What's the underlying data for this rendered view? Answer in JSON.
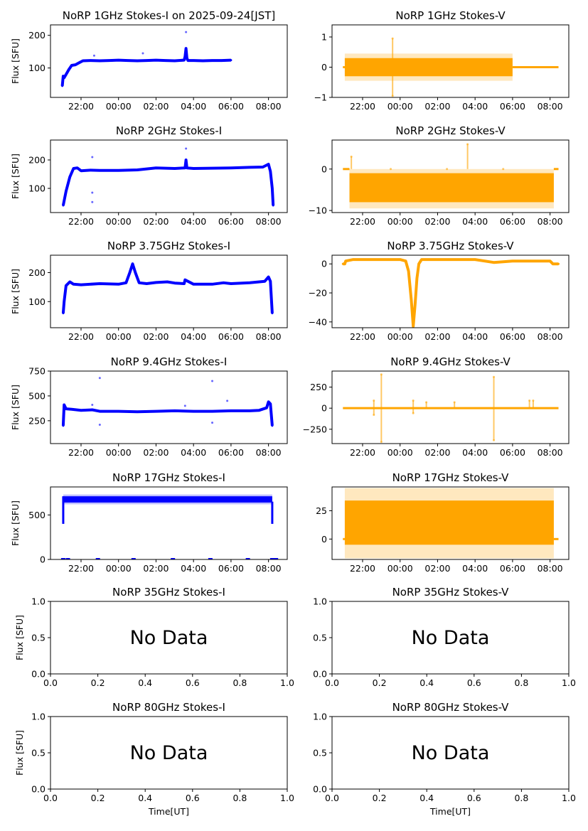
{
  "figure": {
    "colors": {
      "stokes_i": "#0000ff",
      "stokes_v": "#ffa500",
      "axis": "#000000"
    }
  },
  "chart_data": [
    {
      "type": "scatter",
      "title": "NoRP 1GHz Stokes-I on 2025-09-24[JST]",
      "ylabel": "Flux [SFU]",
      "xlabel": "",
      "stokes": "I",
      "xlim": [
        20.37,
        33.0
      ],
      "ylim": [
        10,
        232
      ],
      "yticks": [
        100,
        200
      ],
      "xticks": [
        "22:00",
        "00:00",
        "02:00",
        "04:00",
        "06:00",
        "08:00"
      ],
      "data_range": [
        21.0,
        30.0
      ],
      "series": [
        {
          "name": "Stokes-I",
          "x": [
            21.0,
            21.05,
            21.1,
            21.2,
            21.35,
            21.5,
            21.7,
            21.9,
            22.1,
            22.5,
            23.0,
            23.5,
            24.0,
            24.5,
            25.0,
            25.5,
            26.0,
            26.5,
            27.0,
            27.5,
            27.55,
            27.6,
            27.65,
            27.7,
            28.0,
            28.5,
            29.0,
            29.5,
            30.0
          ],
          "y": [
            45,
            75,
            70,
            80,
            95,
            108,
            110,
            116,
            122,
            123,
            122,
            123,
            124,
            123,
            122,
            123,
            124,
            123,
            122,
            124,
            135,
            160,
            130,
            123,
            123,
            122,
            123,
            123,
            124
          ]
        }
      ],
      "spikes": [
        {
          "x": 22.7,
          "y": 138
        },
        {
          "x": 27.6,
          "y": 210
        },
        {
          "x": 25.3,
          "y": 145
        }
      ]
    },
    {
      "type": "scatter",
      "title": "NoRP 1GHz Stokes-V",
      "ylabel": "",
      "xlabel": "",
      "stokes": "V",
      "xlim": [
        20.37,
        33.0
      ],
      "ylim": [
        -1,
        1.4
      ],
      "yticks": [
        -1,
        0,
        1
      ],
      "xticks": [
        "22:00",
        "00:00",
        "02:00",
        "04:00",
        "06:00",
        "08:00"
      ],
      "band": {
        "x": [
          21.05,
          30.0
        ],
        "lo": -0.3,
        "hi": 0.3,
        "outer_lo": -0.45,
        "outer_hi": 0.45
      },
      "flat": [
        {
          "x": [
            20.95,
            21.05
          ],
          "y": 0
        },
        {
          "x": 30.0,
          "x2": 32.45,
          "y": 0
        }
      ],
      "spikes": [
        {
          "x": 23.6,
          "y": 0.95
        },
        {
          "x": 23.6,
          "y": -0.95
        }
      ]
    },
    {
      "type": "scatter",
      "title": "NoRP 2GHz Stokes-I",
      "ylabel": "Flux [SFU]",
      "xlabel": "",
      "stokes": "I",
      "xlim": [
        20.37,
        33.0
      ],
      "ylim": [
        15,
        270
      ],
      "yticks": [
        100,
        200
      ],
      "xticks": [
        "22:00",
        "00:00",
        "02:00",
        "04:00",
        "06:00",
        "08:00"
      ],
      "series": [
        {
          "name": "Stokes-I",
          "x": [
            21.05,
            21.2,
            21.4,
            21.6,
            21.8,
            22.0,
            22.5,
            23.0,
            24.0,
            25.0,
            26.0,
            27.0,
            27.55,
            27.6,
            27.65,
            28.0,
            29.0,
            30.0,
            31.0,
            31.7,
            32.0,
            32.1,
            32.2,
            32.25
          ],
          "y": [
            40,
            90,
            140,
            170,
            172,
            162,
            164,
            163,
            163,
            165,
            172,
            170,
            172,
            200,
            172,
            170,
            171,
            172,
            174,
            175,
            185,
            160,
            100,
            40
          ]
        }
      ],
      "spikes": [
        {
          "x": 22.6,
          "y": 210
        },
        {
          "x": 22.6,
          "y": 85
        },
        {
          "x": 22.6,
          "y": 52
        },
        {
          "x": 27.6,
          "y": 240
        }
      ]
    },
    {
      "type": "scatter",
      "title": "NoRP 2GHz Stokes-V",
      "ylabel": "",
      "xlabel": "",
      "stokes": "V",
      "xlim": [
        20.37,
        33.0
      ],
      "ylim": [
        -10.5,
        7
      ],
      "yticks": [
        -10,
        0
      ],
      "xticks": [
        "22:00",
        "00:00",
        "02:00",
        "04:00",
        "06:00",
        "08:00"
      ],
      "band": {
        "x": [
          21.3,
          32.2
        ],
        "lo": -8,
        "hi": -1,
        "outer_lo": -9.5,
        "outer_hi": 0
      },
      "flat": [
        {
          "x": [
            20.95,
            21.3
          ],
          "y": 0
        },
        {
          "x": 32.2,
          "x2": 32.45,
          "y": 0
        }
      ],
      "spikes": [
        {
          "x": 21.4,
          "y": 3
        },
        {
          "x": 27.6,
          "y": 6
        },
        {
          "x": 23.5,
          "y": 0
        },
        {
          "x": 26.5,
          "y": 0
        },
        {
          "x": 29.5,
          "y": 0
        }
      ]
    },
    {
      "type": "scatter",
      "title": "NoRP 3.75GHz Stokes-I",
      "ylabel": "Flux [SFU]",
      "xlabel": "",
      "stokes": "I",
      "xlim": [
        20.37,
        33.0
      ],
      "ylim": [
        10,
        260
      ],
      "yticks": [
        100,
        200
      ],
      "xticks": [
        "22:00",
        "00:00",
        "02:00",
        "04:00",
        "06:00",
        "08:00"
      ],
      "series": [
        {
          "name": "Stokes-I",
          "x": [
            21.05,
            21.1,
            21.2,
            21.4,
            21.6,
            22.0,
            23.0,
            24.0,
            24.4,
            24.6,
            24.75,
            24.9,
            25.1,
            25.5,
            26.0,
            26.6,
            27.0,
            27.5,
            27.55,
            28.0,
            29.0,
            29.6,
            30.0,
            31.0,
            31.8,
            32.0,
            32.1,
            32.2
          ],
          "y": [
            60,
            100,
            155,
            168,
            160,
            158,
            162,
            160,
            165,
            200,
            230,
            200,
            165,
            162,
            166,
            168,
            164,
            162,
            175,
            160,
            160,
            165,
            162,
            165,
            170,
            185,
            170,
            60
          ]
        }
      ]
    },
    {
      "type": "scatter",
      "title": "NoRP 3.75GHz Stokes-V",
      "ylabel": "",
      "xlabel": "",
      "stokes": "V",
      "xlim": [
        20.37,
        33.0
      ],
      "ylim": [
        -44,
        6
      ],
      "yticks": [
        -40,
        -20,
        0
      ],
      "xticks": [
        "22:00",
        "00:00",
        "02:00",
        "04:00",
        "06:00",
        "08:00"
      ],
      "series": [
        {
          "name": "Stokes-V",
          "x": [
            20.95,
            21.05,
            21.1,
            21.5,
            22.0,
            23.0,
            24.0,
            24.3,
            24.45,
            24.6,
            24.7,
            24.8,
            24.9,
            25.0,
            25.15,
            25.3,
            26.0,
            27.0,
            28.0,
            29.0,
            30.0,
            31.0,
            32.0,
            32.15,
            32.2,
            32.45
          ],
          "y": [
            0,
            0,
            2,
            3,
            3,
            3,
            3,
            2,
            -5,
            -25,
            -43,
            -28,
            -10,
            0,
            3,
            3,
            3,
            3,
            3,
            1,
            2,
            2,
            2,
            0,
            0,
            0
          ]
        }
      ]
    },
    {
      "type": "scatter",
      "title": "NoRP 9.4GHz Stokes-I",
      "ylabel": "Flux [SFU]",
      "xlabel": "",
      "stokes": "I",
      "xlim": [
        20.37,
        33.0
      ],
      "ylim": [
        20,
        750
      ],
      "yticks": [
        250,
        500,
        750
      ],
      "xticks": [
        "22:00",
        "00:00",
        "02:00",
        "04:00",
        "06:00",
        "08:00"
      ],
      "series": [
        {
          "name": "Stokes-I",
          "x": [
            21.05,
            21.1,
            21.2,
            21.5,
            22.0,
            22.6,
            23.0,
            24.0,
            25.0,
            26.0,
            27.0,
            28.0,
            29.0,
            30.0,
            31.0,
            31.5,
            31.9,
            32.0,
            32.1,
            32.2
          ],
          "y": [
            200,
            410,
            370,
            365,
            355,
            360,
            345,
            345,
            340,
            345,
            350,
            345,
            345,
            350,
            350,
            355,
            380,
            440,
            420,
            200
          ]
        }
      ],
      "spikes": [
        {
          "x": 22.6,
          "y": 410
        },
        {
          "x": 23.0,
          "y": 680
        },
        {
          "x": 23.0,
          "y": 210
        },
        {
          "x": 29.0,
          "y": 650
        },
        {
          "x": 29.0,
          "y": 230
        },
        {
          "x": 27.55,
          "y": 400
        },
        {
          "x": 29.8,
          "y": 450
        }
      ]
    },
    {
      "type": "scatter",
      "title": "NoRP 9.4GHz Stokes-V",
      "ylabel": "",
      "xlabel": "",
      "stokes": "V",
      "xlim": [
        20.37,
        33.0
      ],
      "ylim": [
        -420,
        440
      ],
      "yticks": [
        -250,
        0,
        250
      ],
      "xticks": [
        "22:00",
        "00:00",
        "02:00",
        "04:00",
        "06:00",
        "08:00"
      ],
      "flat": [
        {
          "x": 20.95,
          "x2": 32.45,
          "y": 0
        }
      ],
      "spikes": [
        {
          "x": 23.0,
          "y": 400
        },
        {
          "x": 23.0,
          "y": -400
        },
        {
          "x": 29.0,
          "y": 370
        },
        {
          "x": 29.0,
          "y": -380
        },
        {
          "x": 22.6,
          "y": 90
        },
        {
          "x": 22.6,
          "y": -80
        },
        {
          "x": 24.7,
          "y": 90
        },
        {
          "x": 24.7,
          "y": -60
        },
        {
          "x": 25.4,
          "y": 70
        },
        {
          "x": 26.9,
          "y": 70
        },
        {
          "x": 30.9,
          "y": 90
        },
        {
          "x": 31.1,
          "y": 90
        }
      ]
    },
    {
      "type": "scatter",
      "title": "NoRP 17GHz Stokes-I",
      "ylabel": "Flux [SFU]",
      "xlabel": "",
      "stokes": "I",
      "xlim": [
        20.37,
        33.0
      ],
      "ylim": [
        0,
        815
      ],
      "yticks": [
        0,
        500
      ],
      "xticks": [
        "22:00",
        "00:00",
        "02:00",
        "04:00",
        "06:00",
        "08:00"
      ],
      "band": {
        "x": [
          21.05,
          32.2
        ],
        "lo": 640,
        "hi": 710,
        "outer_lo": 620,
        "outer_hi": 730
      },
      "edges": [
        {
          "x": 21.05,
          "lo": 400,
          "hi": 710
        },
        {
          "x": 32.2,
          "lo": 400,
          "hi": 650
        }
      ],
      "zeros": [
        21.05,
        21.3,
        22.9,
        24.8,
        26.9,
        28.9,
        30.9,
        32.2,
        32.4
      ]
    },
    {
      "type": "scatter",
      "title": "NoRP 17GHz Stokes-V",
      "ylabel": "",
      "xlabel": "",
      "stokes": "V",
      "xlim": [
        20.37,
        33.0
      ],
      "ylim": [
        -18,
        46
      ],
      "yticks": [
        0,
        25
      ],
      "xticks": [
        "22:00",
        "00:00",
        "02:00",
        "04:00",
        "06:00",
        "08:00"
      ],
      "band": {
        "x": [
          21.05,
          32.2
        ],
        "lo": -5,
        "hi": 34,
        "outer_lo": -17,
        "outer_hi": 45
      },
      "flat": [
        {
          "x": [
            20.95,
            21.05
          ],
          "y": 0
        },
        {
          "x": 32.2,
          "x2": 32.45,
          "y": 0
        }
      ]
    },
    {
      "type": "scatter",
      "title": "NoRP 35GHz Stokes-I",
      "ylabel": "Flux [SFU]",
      "xlabel": "",
      "stokes": "I",
      "no_data": "No Data",
      "xlim": [
        0,
        1
      ],
      "ylim": [
        0,
        1
      ],
      "yticks": [
        "0.0",
        "0.5",
        "1.0"
      ],
      "xticks": [
        "0.0",
        "0.2",
        "0.4",
        "0.6",
        "0.8",
        "1.0"
      ]
    },
    {
      "type": "scatter",
      "title": "NoRP 35GHz Stokes-V",
      "ylabel": "",
      "xlabel": "",
      "stokes": "V",
      "no_data": "No Data",
      "xlim": [
        0,
        1
      ],
      "ylim": [
        0,
        1
      ],
      "yticks": [
        "0.0",
        "0.5",
        "1.0"
      ],
      "xticks": [
        "0.0",
        "0.2",
        "0.4",
        "0.6",
        "0.8",
        "1.0"
      ]
    },
    {
      "type": "scatter",
      "title": "NoRP 80GHz Stokes-I",
      "ylabel": "Flux [SFU]",
      "xlabel": "Time[UT]",
      "stokes": "I",
      "no_data": "No Data",
      "xlim": [
        0,
        1
      ],
      "ylim": [
        0,
        1
      ],
      "yticks": [
        "0.0",
        "0.5",
        "1.0"
      ],
      "xticks": [
        "0.0",
        "0.2",
        "0.4",
        "0.6",
        "0.8",
        "1.0"
      ]
    },
    {
      "type": "scatter",
      "title": "NoRP 80GHz Stokes-V",
      "ylabel": "",
      "xlabel": "Time[UT]",
      "stokes": "V",
      "no_data": "No Data",
      "xlim": [
        0,
        1
      ],
      "ylim": [
        0,
        1
      ],
      "yticks": [
        "0.0",
        "0.5",
        "1.0"
      ],
      "xticks": [
        "0.0",
        "0.2",
        "0.4",
        "0.6",
        "0.8",
        "1.0"
      ]
    }
  ]
}
